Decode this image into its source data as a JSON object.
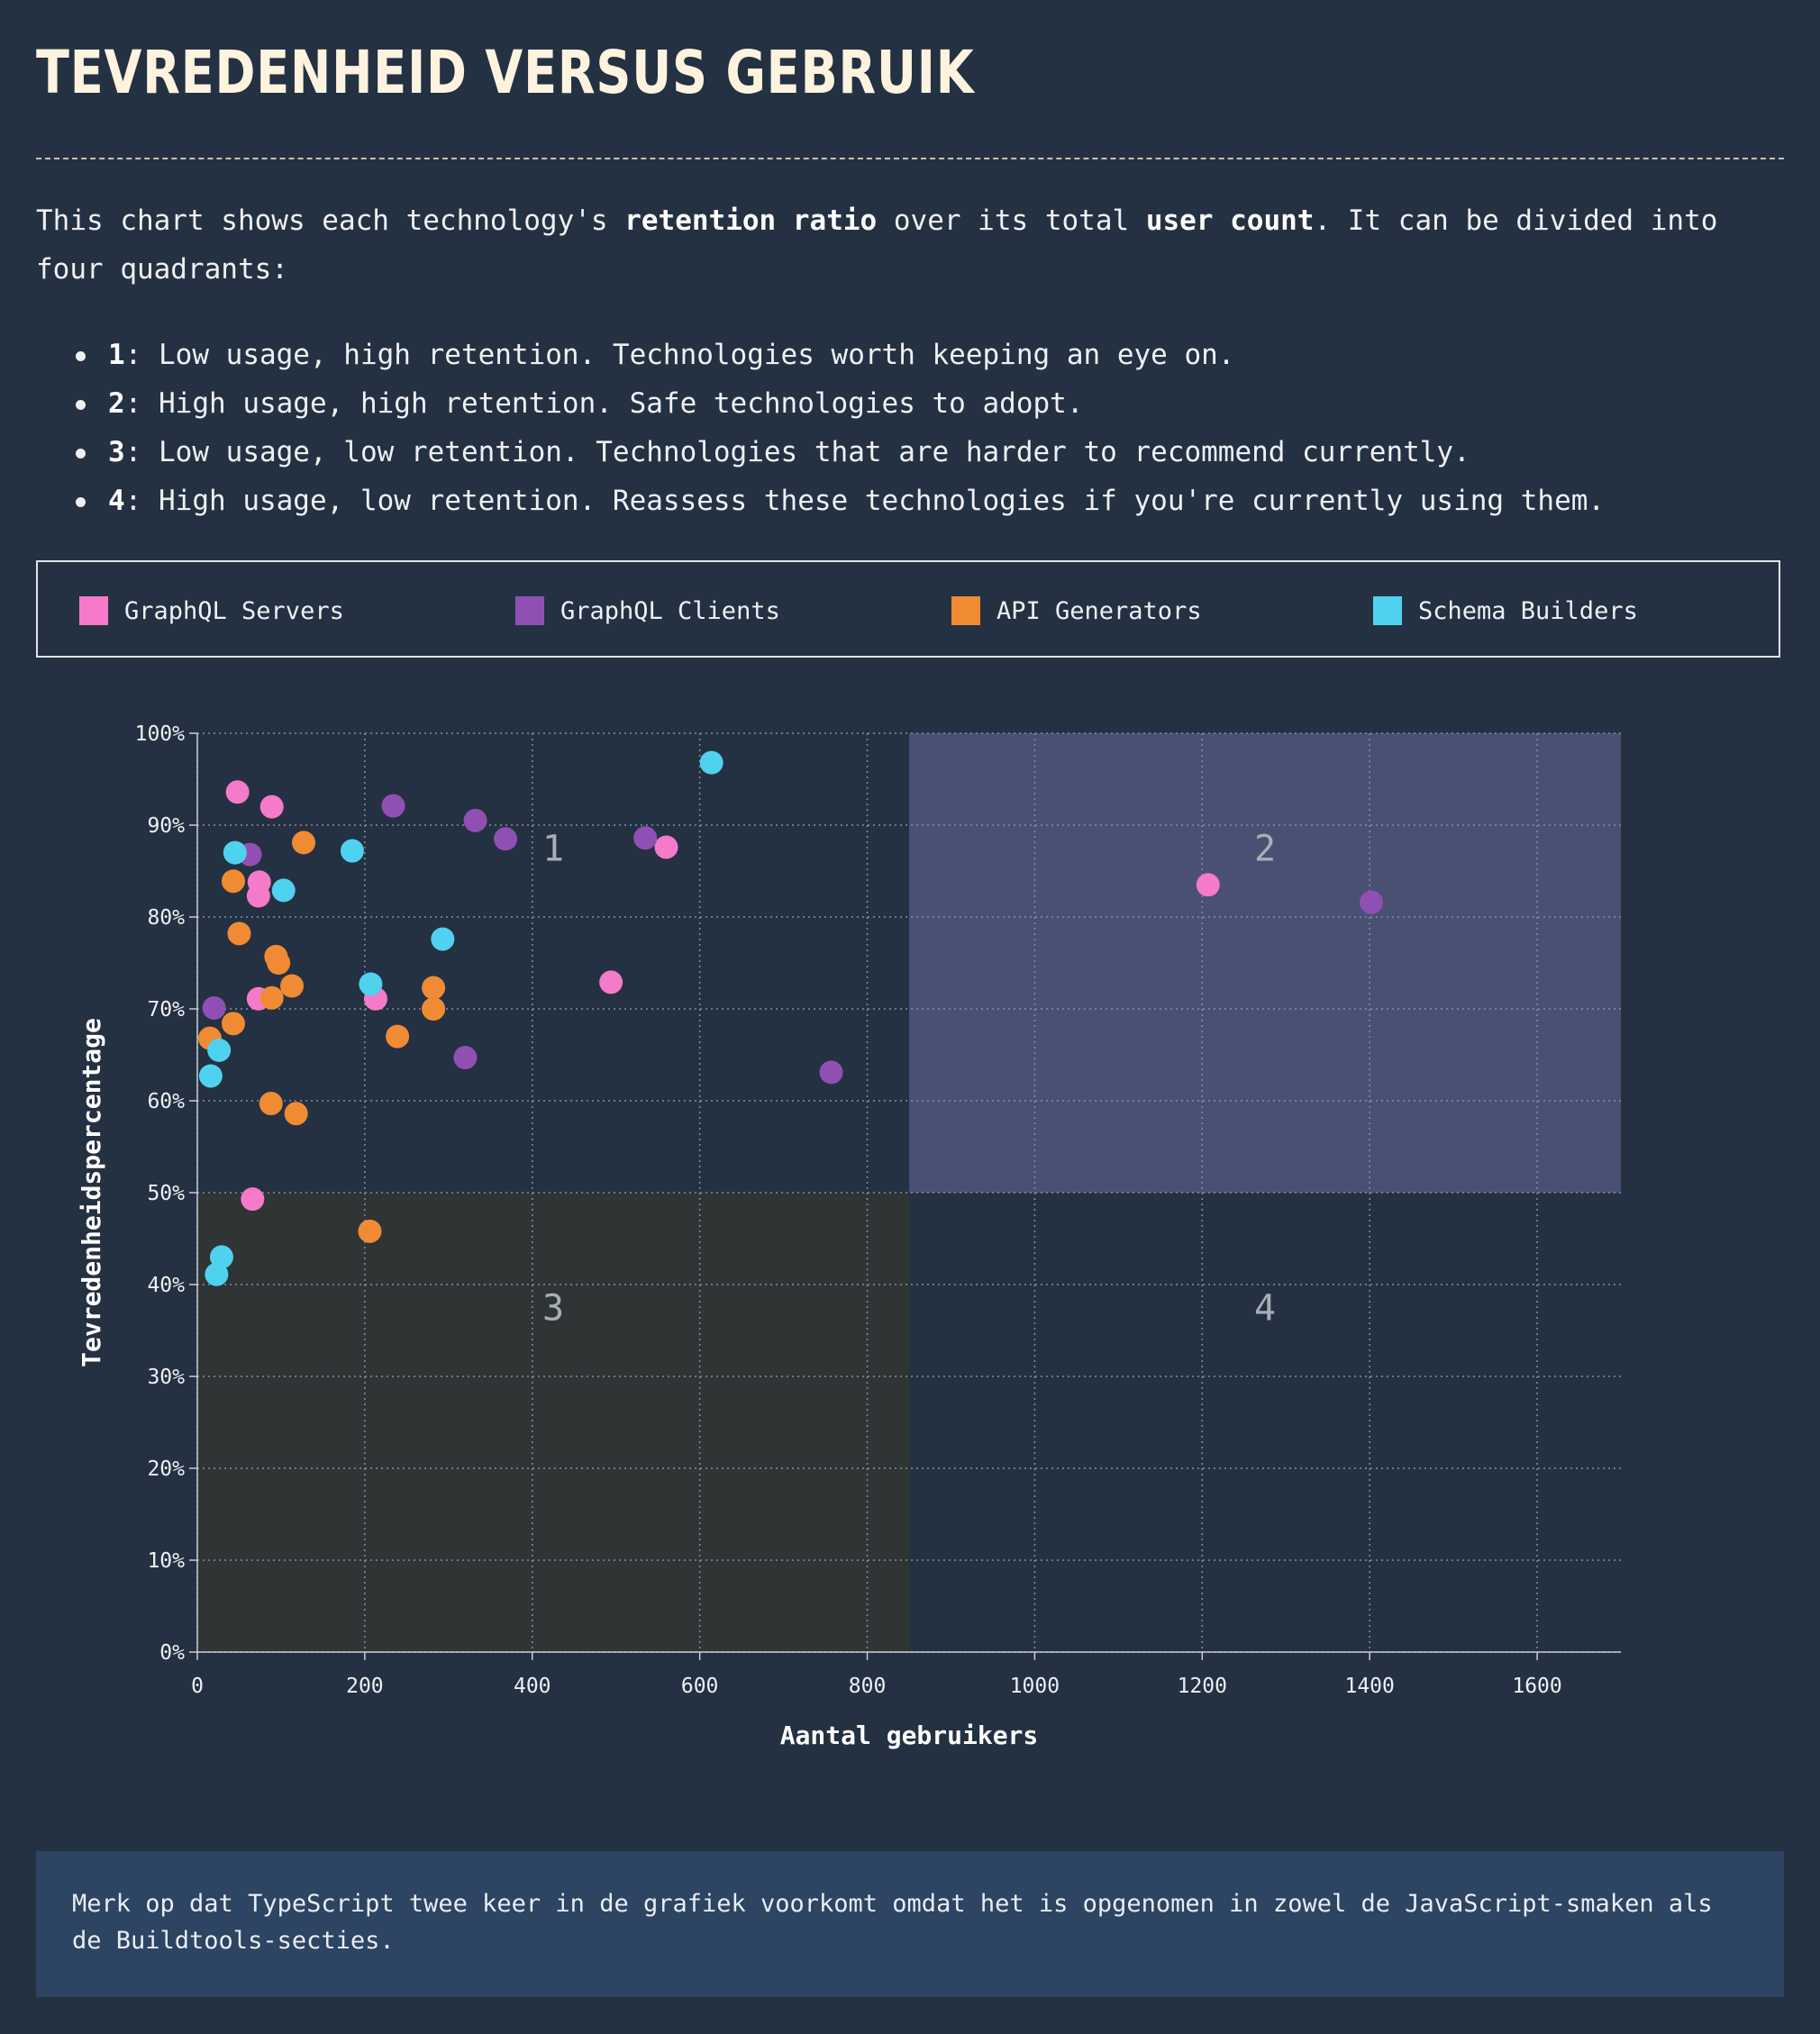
{
  "title": "TEVREDENHEID VERSUS GEBRUIK",
  "intro": {
    "before": "This chart shows each technology's ",
    "bold1": "retention ratio",
    "middle": " over its total ",
    "bold2": "user count",
    "after": ". It can be divided into four quadrants:"
  },
  "quadrants": [
    {
      "num": "1",
      "text": ": Low usage, high retention. Technologies worth keeping an eye on."
    },
    {
      "num": "2",
      "text": ": High usage, high retention. Safe technologies to adopt."
    },
    {
      "num": "3",
      "text": ": Low usage, low retention. Technologies that are harder to recommend currently."
    },
    {
      "num": "4",
      "text": ": High usage, low retention. Reassess these technologies if you're currently using them."
    }
  ],
  "legend": [
    {
      "label": "GraphQL Servers",
      "color": "#f57ac9"
    },
    {
      "label": "GraphQL Clients",
      "color": "#9050b3"
    },
    {
      "label": "API Generators",
      "color": "#f08b34"
    },
    {
      "label": "Schema Builders",
      "color": "#4fd2ef"
    }
  ],
  "note": "Merk op dat TypeScript twee keer in de grafiek voorkomt omdat het is opgenomen in zowel de JavaScript-smaken als de Buildtools-secties.",
  "chart_data": {
    "type": "scatter",
    "xlabel": "Aantal gebruikers",
    "ylabel": "Tevredenheidspercentage",
    "xlim": [
      0,
      1700
    ],
    "ylim": [
      0,
      100
    ],
    "x_ticks": [
      0,
      200,
      400,
      600,
      800,
      1000,
      1200,
      1400,
      1600
    ],
    "y_ticks": [
      "0%",
      "10%",
      "20%",
      "30%",
      "40%",
      "50%",
      "60%",
      "70%",
      "80%",
      "90%",
      "100%"
    ],
    "grid": true,
    "quadrants": [
      {
        "label": "1",
        "x": [
          0,
          850
        ],
        "y": [
          50,
          100
        ],
        "fill": "none"
      },
      {
        "label": "2",
        "x": [
          850,
          1700
        ],
        "y": [
          50,
          100
        ],
        "fill": "#4a5074"
      },
      {
        "label": "3",
        "x": [
          0,
          850
        ],
        "y": [
          0,
          50
        ],
        "fill": "#2f3434"
      },
      {
        "label": "4",
        "x": [
          850,
          1700
        ],
        "y": [
          0,
          50
        ],
        "fill": "none"
      }
    ],
    "series": [
      {
        "name": "GraphQL Servers",
        "color": "#f57ac9",
        "points": [
          [
            48,
            93.6
          ],
          [
            89,
            92.0
          ],
          [
            560,
            87.6
          ],
          [
            74,
            83.8
          ],
          [
            73,
            82.3
          ],
          [
            1207,
            83.5
          ],
          [
            73,
            71.1
          ],
          [
            213,
            71.1
          ],
          [
            494,
            72.9
          ],
          [
            66,
            49.3
          ]
        ]
      },
      {
        "name": "GraphQL Clients",
        "color": "#9050b3",
        "points": [
          [
            234,
            92.1
          ],
          [
            332,
            90.5
          ],
          [
            368,
            88.5
          ],
          [
            535,
            88.6
          ],
          [
            63,
            86.8
          ],
          [
            1402,
            81.6
          ],
          [
            20,
            70.1
          ],
          [
            320,
            64.7
          ],
          [
            757,
            63.1
          ]
        ]
      },
      {
        "name": "API Generators",
        "color": "#f08b34",
        "points": [
          [
            127,
            88.1
          ],
          [
            43,
            83.9
          ],
          [
            50,
            78.2
          ],
          [
            94,
            75.7
          ],
          [
            97,
            75.0
          ],
          [
            113,
            72.5
          ],
          [
            89,
            71.2
          ],
          [
            282,
            72.3
          ],
          [
            282,
            70.0
          ],
          [
            43,
            68.4
          ],
          [
            239,
            67.0
          ],
          [
            15,
            66.8
          ],
          [
            88,
            59.7
          ],
          [
            118,
            58.6
          ],
          [
            206,
            45.8
          ]
        ]
      },
      {
        "name": "Schema Builders",
        "color": "#4fd2ef",
        "points": [
          [
            614,
            96.8
          ],
          [
            45,
            87.0
          ],
          [
            185,
            87.2
          ],
          [
            103,
            82.9
          ],
          [
            293,
            77.6
          ],
          [
            207,
            72.7
          ],
          [
            26,
            65.5
          ],
          [
            16,
            62.7
          ],
          [
            29,
            43.0
          ],
          [
            23,
            41.1
          ]
        ]
      }
    ]
  }
}
